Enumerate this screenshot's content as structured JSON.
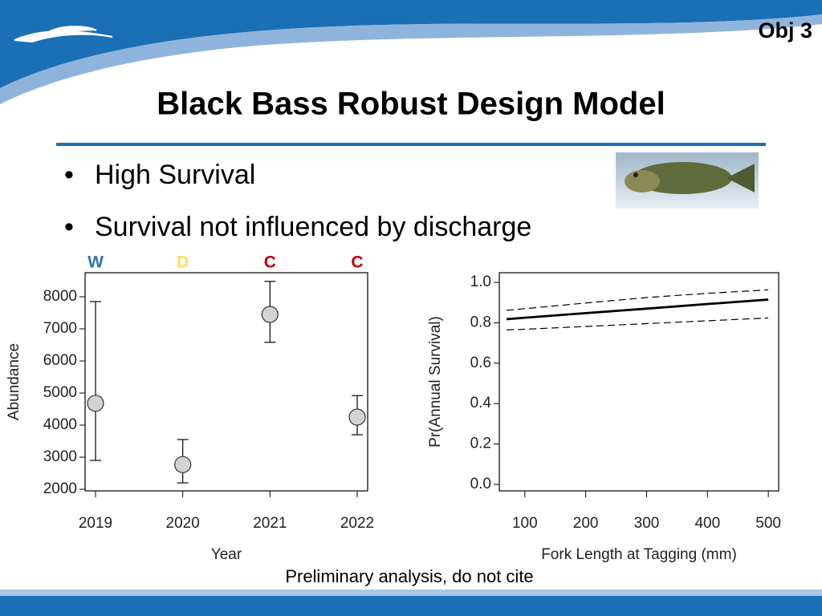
{
  "slide": {
    "tag": "Obj 3",
    "title": "Black Bass Robust Design Model",
    "bullets": [
      "High Survival",
      "Survival not influenced by discharge"
    ],
    "note": "Preliminary analysis, do not cite"
  },
  "chart_data": [
    {
      "type": "errorbar",
      "x_label": "Year",
      "y_label": "Abundance",
      "categories": [
        "2019",
        "2020",
        "2021",
        "2022"
      ],
      "values": [
        4680,
        2770,
        7450,
        4250
      ],
      "lower": [
        2900,
        2200,
        6580,
        3700
      ],
      "upper": [
        7850,
        3550,
        8480,
        4920
      ],
      "color": "#d3d3d3",
      "annotations": [
        {
          "text": "W",
          "color": "#2e75b6"
        },
        {
          "text": "D",
          "color": "#ffd966"
        },
        {
          "text": "C",
          "color": "#c00000"
        },
        {
          "text": "C",
          "color": "#c00000"
        }
      ],
      "ylim": [
        1950,
        8750
      ],
      "yticks": [
        2000,
        3000,
        4000,
        5000,
        6000,
        7000,
        8000
      ]
    },
    {
      "type": "line",
      "x_label": "Fork Length at Tagging (mm)",
      "y_label": "Pr(Annual Survival)",
      "x": [
        70,
        100,
        200,
        300,
        400,
        500
      ],
      "series": [
        {
          "color": "#000000",
          "dash": false,
          "values": [
            0.818,
            0.825,
            0.848,
            0.87,
            0.893,
            0.915
          ]
        },
        {
          "color": "#000000",
          "dash": true,
          "values": [
            0.765,
            0.768,
            0.782,
            0.796,
            0.81,
            0.824
          ]
        },
        {
          "color": "#000000",
          "dash": true,
          "values": [
            0.862,
            0.87,
            0.898,
            0.925,
            0.946,
            0.963
          ]
        }
      ],
      "xlim": [
        58,
        517
      ],
      "xticks": [
        100,
        200,
        300,
        400,
        500
      ],
      "ylim": [
        -0.032,
        1.048
      ],
      "yticks": [
        {
          "value": 0,
          "label": "0.0"
        },
        0.2,
        0.4,
        0.6,
        0.8,
        {
          "value": 1,
          "label": "1.0"
        }
      ]
    }
  ]
}
